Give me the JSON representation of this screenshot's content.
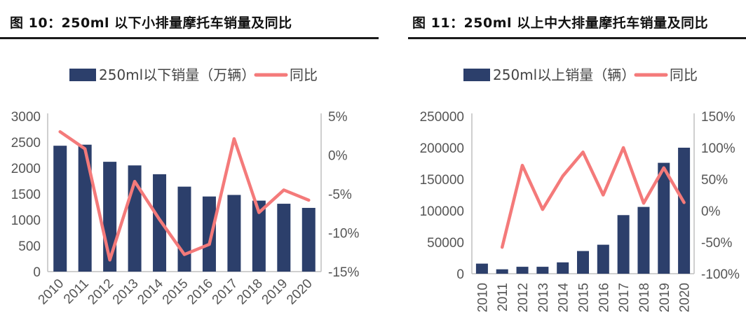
{
  "figures": [
    {
      "title": "图 10：250ml 以下小排量摩托车销量及同比"
    },
    {
      "title": "图 11：250ml 以上中大排量摩托车销量及同比"
    }
  ],
  "colors": {
    "bar": "#2c3f6b",
    "line": "#f47a7a",
    "axis": "#bfbfbf"
  },
  "chart_data": [
    {
      "type": "bar",
      "categories": [
        "2010",
        "2011",
        "2012",
        "2013",
        "2014",
        "2015",
        "2016",
        "2017",
        "2018",
        "2019",
        "2020"
      ],
      "series": [
        {
          "name": "250ml以下销量（万辆）",
          "type": "bar",
          "axis": "left",
          "values": [
            2430,
            2450,
            2120,
            2050,
            1880,
            1640,
            1450,
            1480,
            1370,
            1310,
            1230
          ]
        },
        {
          "name": "同比",
          "type": "line",
          "axis": "right",
          "values": [
            3.0,
            0.8,
            -13.5,
            -3.4,
            -8.3,
            -12.8,
            -11.5,
            2.1,
            -7.4,
            -4.5,
            -5.8
          ]
        }
      ],
      "ylim": [
        0,
        3000
      ],
      "yticks": [
        "0",
        "500",
        "1000",
        "1500",
        "2000",
        "2500",
        "3000"
      ],
      "y2lim": [
        -15,
        5
      ],
      "y2ticks": [
        "-15%",
        "-10%",
        "-5%",
        "0%",
        "5%"
      ]
    },
    {
      "type": "bar",
      "categories": [
        "2010",
        "2011",
        "2012",
        "2013",
        "2014",
        "2015",
        "2016",
        "2017",
        "2018",
        "2019",
        "2020"
      ],
      "series": [
        {
          "name": "250ml以上销量（辆）",
          "type": "bar",
          "axis": "left",
          "values": [
            16000,
            7000,
            11000,
            11000,
            18000,
            36000,
            46000,
            93000,
            106000,
            176000,
            200000
          ]
        },
        {
          "name": "同比",
          "type": "line",
          "axis": "right",
          "values": [
            null,
            -58,
            72,
            2,
            55,
            93,
            25,
            100,
            12,
            68,
            13
          ]
        }
      ],
      "ylim": [
        0,
        250000
      ],
      "yticks": [
        "0",
        "50000",
        "100000",
        "150000",
        "200000",
        "250000"
      ],
      "y2lim": [
        -100,
        150
      ],
      "y2ticks": [
        "-100%",
        "-50%",
        "0%",
        "50%",
        "100%",
        "150%"
      ]
    }
  ]
}
